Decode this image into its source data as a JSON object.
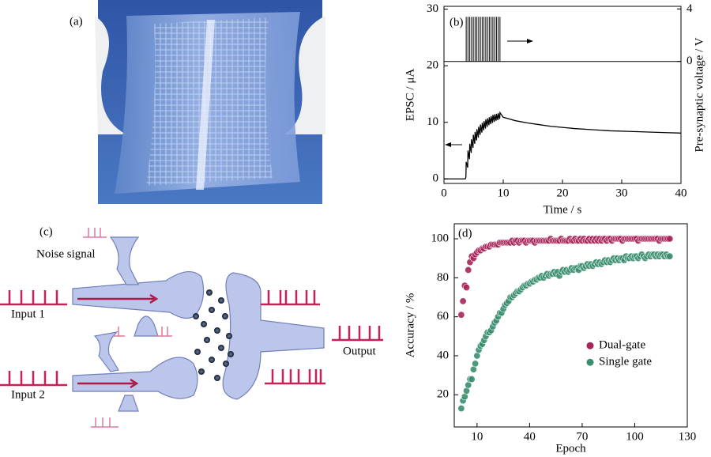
{
  "panels": {
    "a": "(a)",
    "b": "(b)",
    "c": "(c)",
    "d": "(d)"
  },
  "diagram": {
    "noise": "Noise signal",
    "input1": "Input 1",
    "input2": "Input 2",
    "output": "Output"
  },
  "chart_data": [
    {
      "type": "line",
      "xlabel": "Time / s",
      "ylabel": "EPSC / μA",
      "y2label": "Pre-synaptic voltage / V",
      "xlim": [
        0,
        40
      ],
      "xticks": [
        0,
        10,
        20,
        30,
        40
      ],
      "ylim": [
        -0.8,
        30.5
      ],
      "yticks": [
        0,
        10,
        20,
        30
      ],
      "y2lim": [
        -9.3,
        4.2
      ],
      "y2ticks": [
        0,
        4
      ],
      "grid": false,
      "series": [
        {
          "color": "#000000",
          "x": [
            0,
            3.6,
            3.7,
            3.75,
            4.0,
            4.05,
            4.3,
            4.35,
            4.6,
            4.65,
            4.9,
            4.95,
            5.2,
            5.25,
            5.5,
            5.55,
            5.8,
            5.85,
            6.1,
            6.15,
            6.4,
            6.45,
            6.7,
            6.75,
            7.0,
            7.05,
            7.3,
            7.35,
            7.6,
            7.65,
            7.9,
            7.95,
            8.2,
            8.25,
            8.5,
            8.55,
            8.8,
            8.85,
            9.1,
            9.15,
            9.4,
            9.45,
            10,
            11,
            12,
            14,
            16,
            18,
            20,
            22,
            25,
            28,
            31,
            34,
            37,
            40
          ],
          "values": [
            0,
            0,
            0.3,
            3,
            2,
            5,
            3.5,
            6.2,
            4.6,
            7,
            5.5,
            7.8,
            6.2,
            8.3,
            6.8,
            8.8,
            7.3,
            9.2,
            7.8,
            9.6,
            8.2,
            9.9,
            8.6,
            10.2,
            8.9,
            10.5,
            9.2,
            10.7,
            9.5,
            10.9,
            9.7,
            11.1,
            9.9,
            11.3,
            10.1,
            11.4,
            10.3,
            11.5,
            10.4,
            11.6,
            10.6,
            11.7,
            10.9,
            10.6,
            10.3,
            9.9,
            9.6,
            9.3,
            9.1,
            8.9,
            8.7,
            8.5,
            8.4,
            8.3,
            8.2,
            8.1
          ]
        },
        {
          "color": "#000000",
          "axis": "y2",
          "type": "spikes",
          "x": [
            3.75,
            4.05,
            4.35,
            4.65,
            4.95,
            5.25,
            5.55,
            5.85,
            6.15,
            6.45,
            6.75,
            7.05,
            7.35,
            7.65,
            7.95,
            8.25,
            8.55,
            8.85,
            9.15,
            9.45
          ],
          "values": [
            3.4,
            3.4,
            3.4,
            3.4,
            3.4,
            3.4,
            3.4,
            3.4,
            3.4,
            3.4,
            3.4,
            3.4,
            3.4,
            3.4,
            3.4,
            3.4,
            3.4,
            3.4,
            3.4,
            3.4
          ]
        }
      ]
    },
    {
      "type": "scatter",
      "xlabel": "Epoch",
      "ylabel": "Accuracy / %",
      "xlim": [
        -3,
        130
      ],
      "xticks": [
        10,
        40,
        70,
        100,
        130
      ],
      "ylim": [
        3.5,
        107.7
      ],
      "yticks": [
        20,
        40,
        60,
        80,
        100
      ],
      "grid": false,
      "legend": "right",
      "x": [
        1,
        2,
        3,
        4,
        5,
        6,
        7,
        8,
        9,
        10,
        11,
        12,
        13,
        14,
        15,
        16,
        17,
        18,
        19,
        20,
        21,
        22,
        23,
        24,
        25,
        26,
        27,
        28,
        29,
        30,
        31,
        32,
        33,
        34,
        35,
        36,
        37,
        38,
        39,
        40,
        41,
        42,
        43,
        44,
        45,
        46,
        47,
        48,
        49,
        50,
        51,
        52,
        53,
        54,
        55,
        56,
        57,
        58,
        59,
        60,
        61,
        62,
        63,
        64,
        65,
        66,
        67,
        68,
        69,
        70,
        71,
        72,
        73,
        74,
        75,
        76,
        77,
        78,
        79,
        80,
        81,
        82,
        83,
        84,
        85,
        86,
        87,
        88,
        89,
        90,
        91,
        92,
        93,
        94,
        95,
        96,
        97,
        98,
        99,
        100,
        101,
        102,
        103,
        104,
        105,
        106,
        107,
        108,
        109,
        110,
        111,
        112,
        113,
        114,
        115,
        116,
        117,
        118,
        119,
        120
      ],
      "series": [
        {
          "name": "Dual-gate",
          "color": "#a8245a",
          "values": [
            61,
            68,
            76,
            75,
            84,
            88,
            91,
            90,
            92,
            93,
            94,
            94,
            95,
            95,
            96,
            96,
            96,
            97,
            97,
            97,
            97,
            97,
            98,
            98,
            98,
            98,
            98,
            98,
            98,
            99,
            98,
            99,
            99,
            98,
            99,
            99,
            99,
            98,
            99,
            99,
            99,
            99,
            98,
            99,
            99,
            99,
            99,
            99,
            99,
            99,
            99,
            100,
            99,
            99,
            99,
            99,
            99,
            100,
            99,
            99,
            99,
            99,
            100,
            99,
            99,
            100,
            99,
            99,
            100,
            99,
            100,
            99,
            99,
            100,
            99,
            100,
            99,
            100,
            99,
            100,
            99,
            100,
            100,
            99,
            100,
            100,
            99,
            100,
            100,
            100,
            100,
            100,
            99,
            100,
            100,
            100,
            100,
            100,
            100,
            100,
            100,
            99,
            100,
            100,
            100,
            100,
            100,
            100,
            100,
            100,
            100,
            100,
            100,
            99,
            100,
            100,
            100,
            100,
            100,
            100
          ]
        },
        {
          "name": "Single gate",
          "color": "#3a8f6e",
          "values": [
            13,
            17,
            19,
            22,
            25,
            28,
            28,
            33,
            36,
            40,
            43,
            45,
            46,
            48,
            50,
            52,
            52,
            53,
            55,
            57,
            58,
            60,
            62,
            62,
            64,
            66,
            67,
            68,
            70,
            70,
            71,
            72,
            73,
            73,
            74,
            75,
            76,
            76,
            77,
            77,
            78,
            78,
            79,
            79,
            80,
            80,
            81,
            80,
            81,
            82,
            81,
            82,
            82,
            83,
            82,
            83,
            81,
            83,
            84,
            83,
            84,
            83,
            84,
            85,
            84,
            85,
            85,
            84,
            86,
            86,
            85,
            86,
            87,
            86,
            87,
            86,
            87,
            88,
            87,
            88,
            87,
            88,
            89,
            88,
            89,
            88,
            89,
            90,
            89,
            90,
            89,
            90,
            90,
            89,
            91,
            90,
            90,
            91,
            90,
            91,
            91,
            90,
            91,
            92,
            91,
            90,
            91,
            92,
            91,
            92,
            92,
            91,
            92,
            91,
            92,
            92,
            91,
            92,
            91,
            91
          ]
        }
      ]
    }
  ]
}
